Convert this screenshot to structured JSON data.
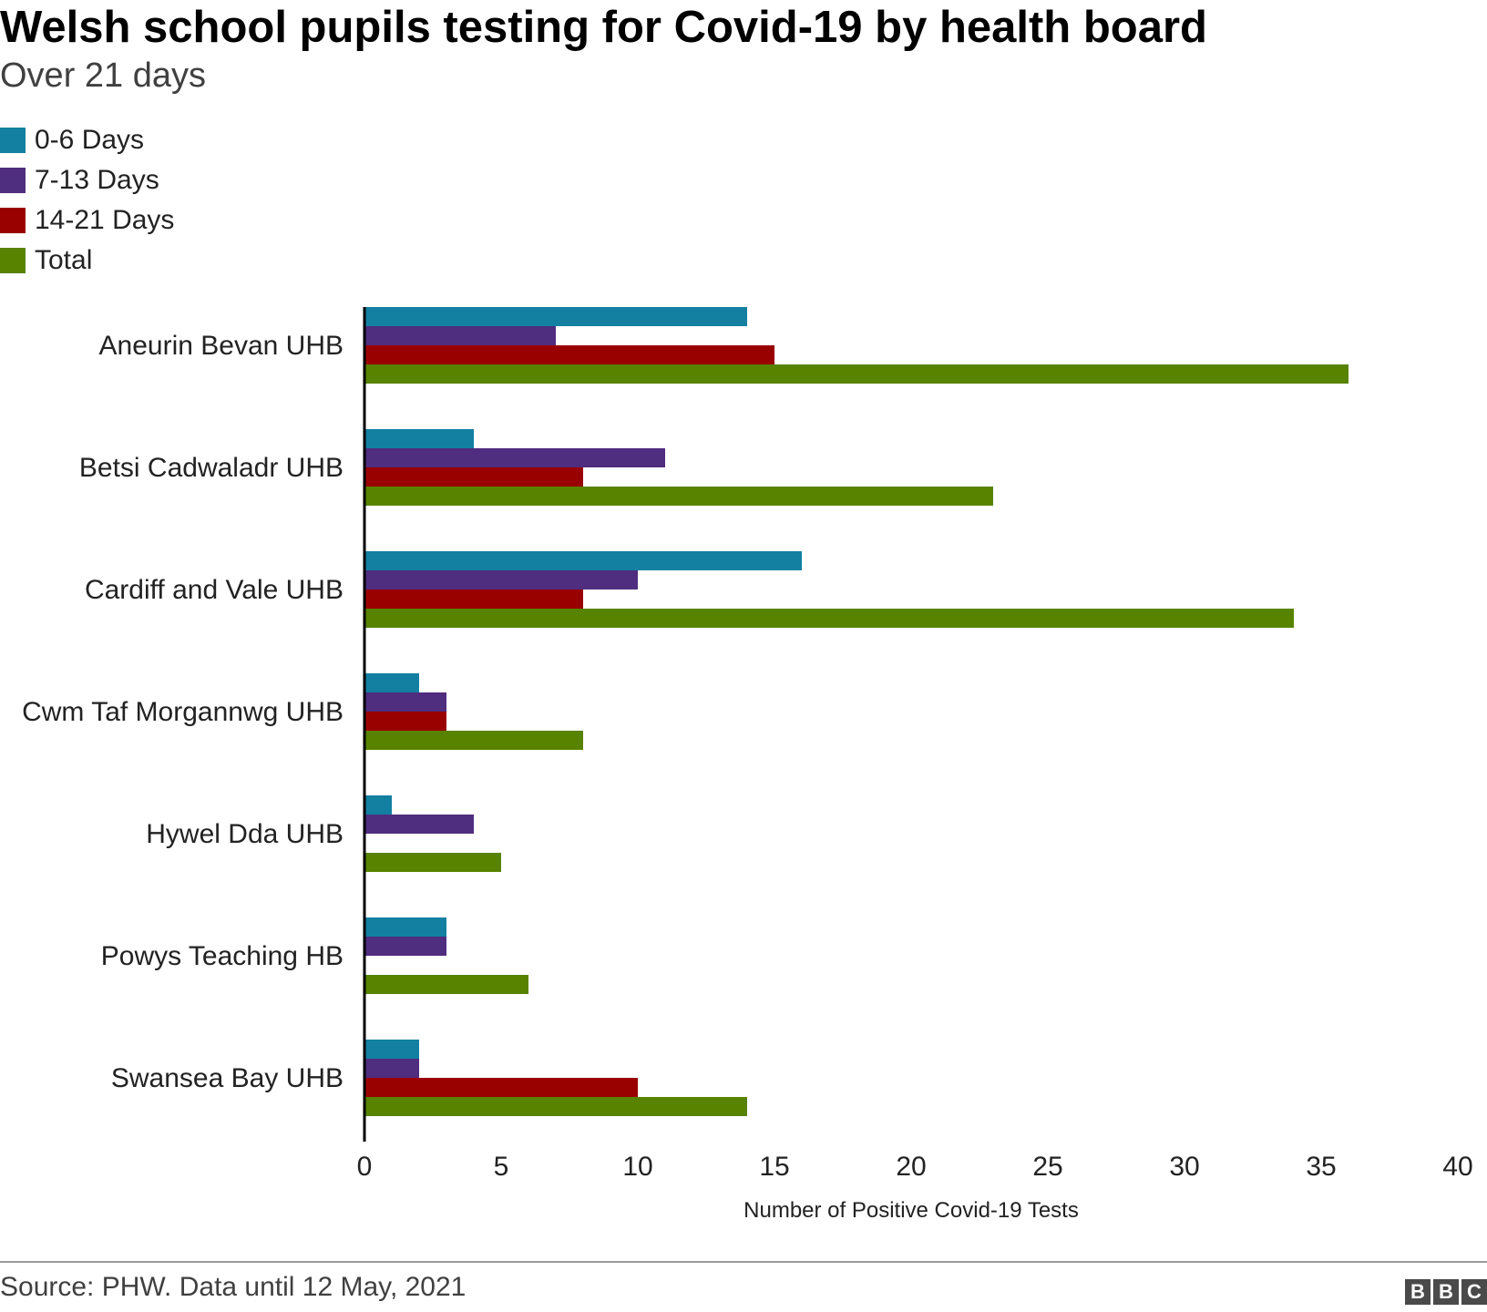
{
  "chart_data": {
    "type": "bar",
    "orientation": "horizontal",
    "title": "Welsh school pupils testing for Covid-19 by health board",
    "subtitle": "Over 21 days",
    "categories": [
      "Aneurin Bevan UHB",
      "Betsi Cadwaladr UHB",
      "Cardiff and Vale UHB",
      "Cwm Taf Morgannwg UHB",
      "Hywel Dda UHB",
      "Powys Teaching HB",
      "Swansea Bay UHB"
    ],
    "series": [
      {
        "name": "0-6 Days",
        "color": "#1380A1",
        "values": [
          14,
          4,
          16,
          2,
          1,
          3,
          2
        ]
      },
      {
        "name": "7-13 Days",
        "color": "#4F2D7F",
        "values": [
          7,
          11,
          10,
          3,
          4,
          3,
          2
        ]
      },
      {
        "name": "14-21 Days",
        "color": "#990000",
        "values": [
          15,
          8,
          8,
          3,
          0,
          0,
          10
        ]
      },
      {
        "name": "Total",
        "color": "#588300",
        "values": [
          36,
          23,
          34,
          8,
          5,
          6,
          14
        ]
      }
    ],
    "xlabel": "Number of Positive Covid-19 Tests",
    "ylabel": "",
    "xlim": [
      0,
      40
    ],
    "xticks": [
      0,
      5,
      10,
      15,
      20,
      25,
      30,
      35,
      40
    ],
    "grid": false,
    "legend_position": "top-left"
  },
  "footer": {
    "source": "Source: PHW. Data until 12 May, 2021",
    "logo_letters": [
      "B",
      "B",
      "C"
    ]
  }
}
